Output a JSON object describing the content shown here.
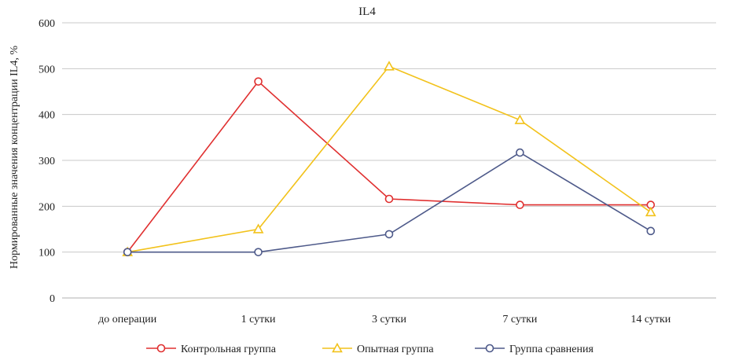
{
  "chart_data": {
    "type": "line",
    "title": "IL4",
    "ylabel": "Нормированные значения концентрации IL4, %",
    "xlabel": "",
    "categories": [
      "до операции",
      "1 сутки",
      "3 сутки",
      "7 сутки",
      "14 сутки"
    ],
    "ylim": [
      0,
      600
    ],
    "yticks": [
      0,
      100,
      200,
      300,
      400,
      500,
      600
    ],
    "grid": true,
    "legend_position": "bottom",
    "series": [
      {
        "name": "Контрольная группа",
        "marker": "circle",
        "color": "#e03030",
        "values": [
          100,
          472,
          216,
          203,
          203
        ]
      },
      {
        "name": "Опытная группа",
        "marker": "triangle",
        "color": "#f2c21b",
        "values": [
          100,
          150,
          505,
          388,
          187
        ]
      },
      {
        "name": "Группа сравнения",
        "marker": "circle",
        "color": "#4e5a8a",
        "values": [
          100,
          100,
          139,
          317,
          146
        ]
      }
    ]
  }
}
